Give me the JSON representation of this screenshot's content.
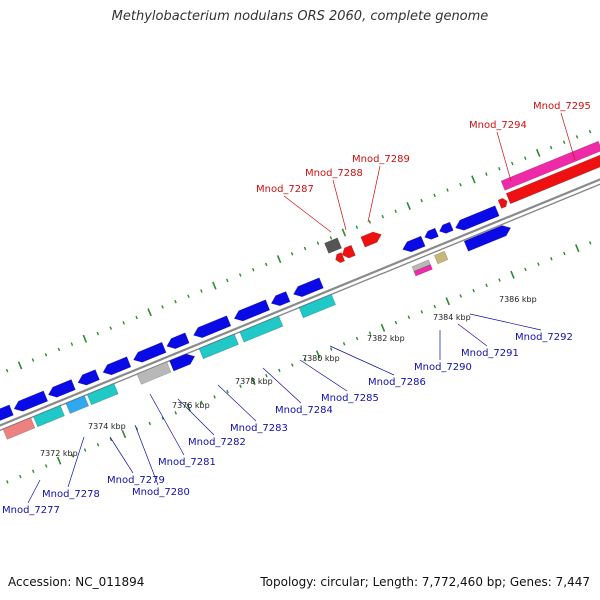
{
  "title": "Methylobacterium nodulans ORS 2060, complete genome",
  "footer": {
    "accession": "Accession: NC_011894",
    "summary": "Topology: circular; Length: 7,772,460 bp; Genes: 7,447"
  },
  "colors": {
    "backbone": "#8a8a8a",
    "tick": "#2e8b2e",
    "gene_blue": "#0a0ae6",
    "gene_cyan": "#20c8c8",
    "gene_red": "#ee1111",
    "gene_magenta": "#ee2aa8",
    "gene_gray": "#b8b8b8",
    "gene_dark": "#555555",
    "gene_salmon": "#ee8080",
    "gene_lightblue": "#30a8f0",
    "gene_khaki": "#c8b878",
    "label_blue": "#1111aa",
    "label_red": "#cc1111"
  },
  "kbp_marks": [
    "7372 kbp",
    "7374 kbp",
    "7376 kbp",
    "7378 kbp",
    "7380 kbp",
    "7382 kbp",
    "7384 kbp",
    "7386 kbp"
  ],
  "labels_blue": [
    "Mnod_7277",
    "Mnod_7278",
    "Mnod_7279",
    "Mnod_7280",
    "Mnod_7281",
    "Mnod_7282",
    "Mnod_7283",
    "Mnod_7284",
    "Mnod_7285",
    "Mnod_7286",
    "Mnod_7290",
    "Mnod_7291",
    "Mnod_7292"
  ],
  "labels_red": [
    "Mnod_7287",
    "Mnod_7288",
    "Mnod_7289",
    "Mnod_7294",
    "Mnod_7295"
  ]
}
